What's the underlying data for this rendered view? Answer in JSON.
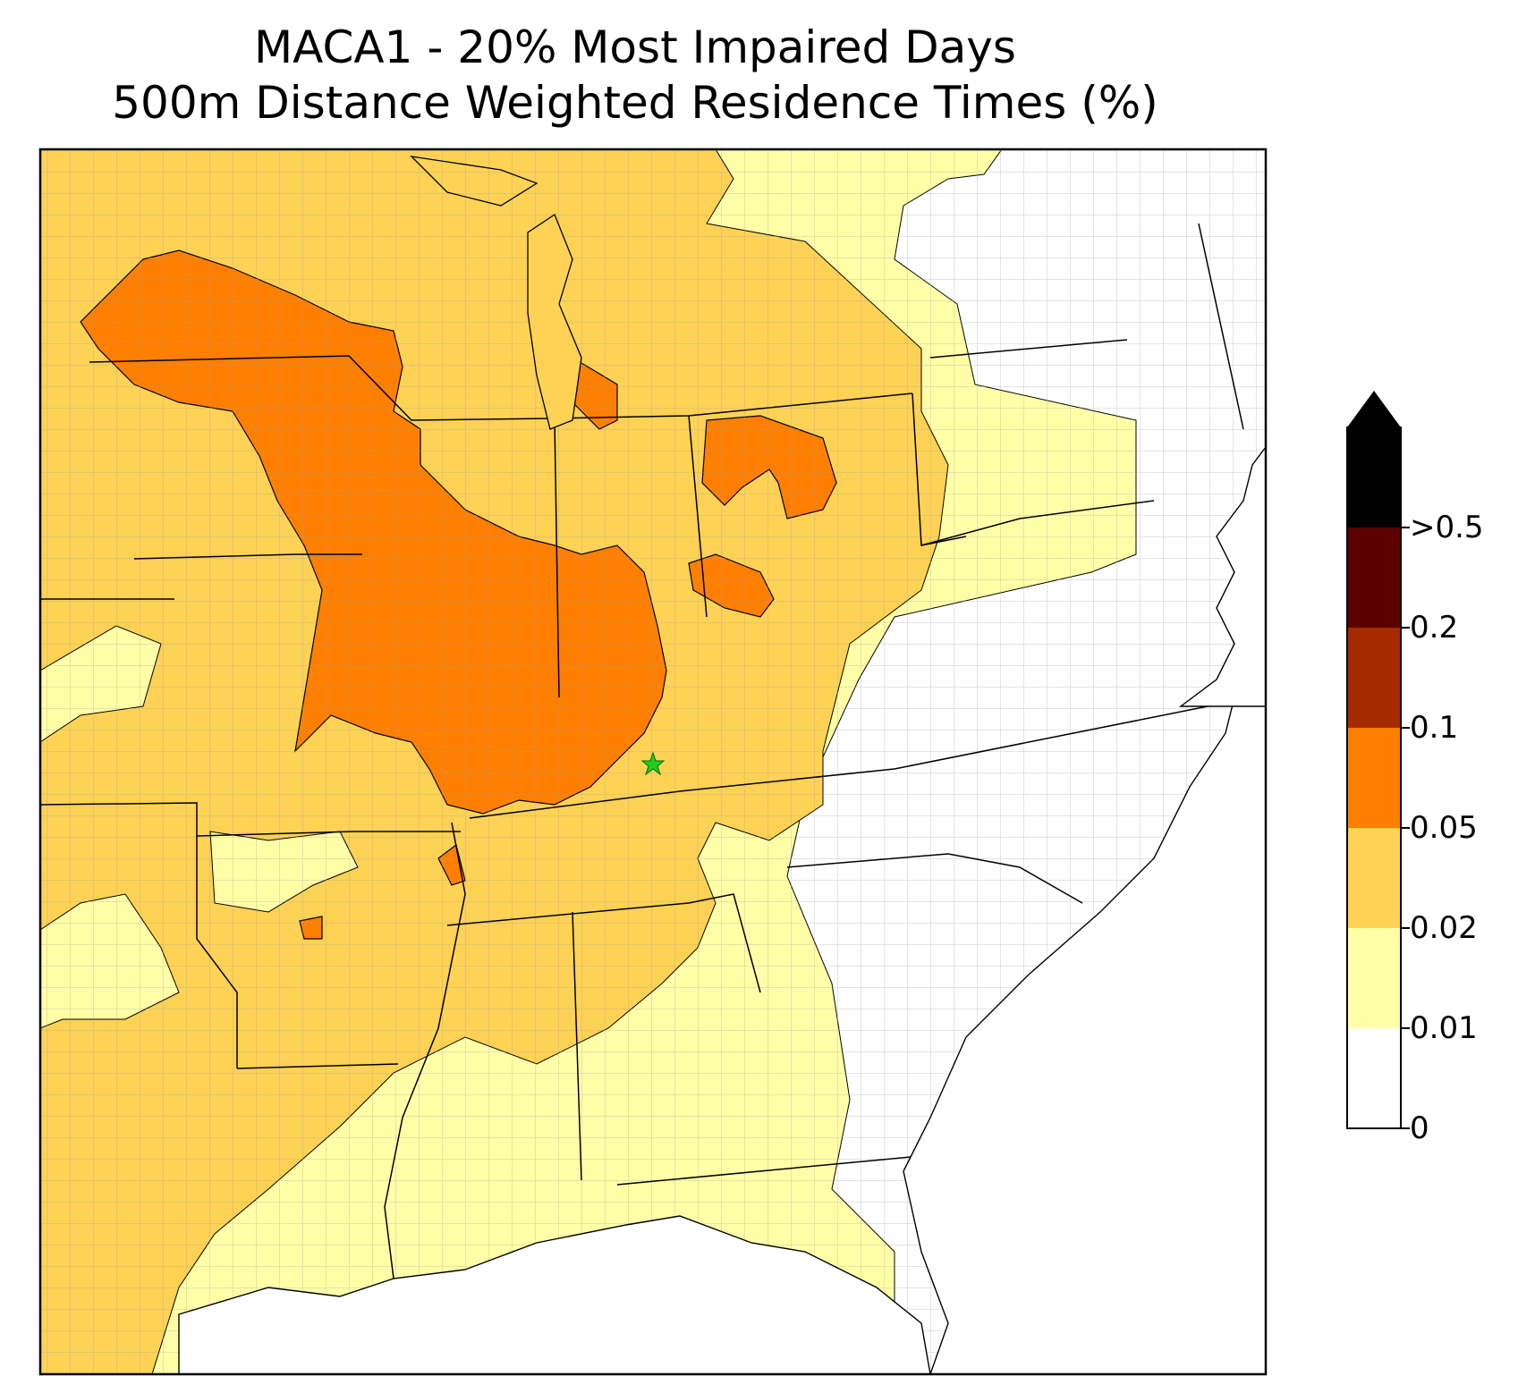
{
  "title": {
    "line1": "MACA1 - 20% Most Impaired Days",
    "line2": "500m Distance Weighted Residence Times (%)"
  },
  "colorbar": {
    "labels": [
      "0",
      "0.01",
      "0.02",
      "0.05",
      "0.1",
      "0.2",
      ">0.5"
    ],
    "bins": [
      {
        "color": "#ffffff"
      },
      {
        "color": "#ffffa8"
      },
      {
        "color": "#fdd255"
      },
      {
        "color": "#ff7f00"
      },
      {
        "color": "#a52a00"
      },
      {
        "color": "#5a0000"
      }
    ],
    "extend_color": "#000000"
  },
  "map": {
    "region": "Eastern United States",
    "site_marker": {
      "symbol": "star",
      "color": "#22cc22"
    },
    "colors": {
      "none": "#ffffff",
      "low": "#ffffa8",
      "medium": "#fdd255",
      "high": "#ff7f00",
      "county_lines": "#999999",
      "state_lines": "#000000"
    }
  }
}
